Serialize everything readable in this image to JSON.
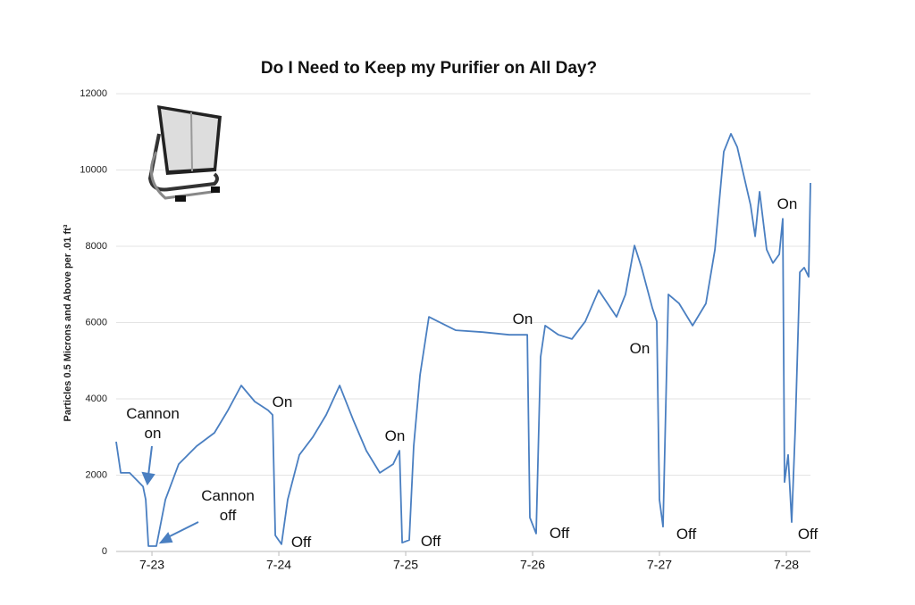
{
  "chart_data": {
    "type": "line",
    "title": "Do I Need to Keep my Purifier on All Day?",
    "y_label": "Particles 0.5 Microns and Above per .01 ft³",
    "x": [
      22.718,
      22.754,
      22.824,
      22.93,
      22.951,
      22.972,
      23.035,
      23.106,
      23.211,
      23.352,
      23.493,
      23.599,
      23.704,
      23.81,
      23.915,
      23.951,
      23.972,
      24.021,
      24.07,
      24.162,
      24.268,
      24.373,
      24.479,
      24.585,
      24.69,
      24.796,
      24.901,
      24.951,
      24.972,
      25.028,
      25.063,
      25.113,
      25.183,
      25.254,
      25.394,
      25.606,
      25.817,
      25.958,
      25.979,
      26.028,
      26.063,
      26.099,
      26.204,
      26.31,
      26.415,
      26.521,
      26.662,
      26.732,
      26.803,
      26.859,
      26.944,
      26.979,
      27.0,
      27.028,
      27.07,
      27.155,
      27.261,
      27.366,
      27.437,
      27.507,
      27.563,
      27.613,
      27.718,
      27.754,
      27.789,
      27.845,
      27.894,
      27.944,
      27.972,
      27.986,
      28.014,
      28.042,
      28.07,
      28.106,
      28.141,
      28.176,
      28.19
    ],
    "series": [
      {
        "color": "#4a7fc1",
        "values": [
          2877,
          2060,
          2060,
          1700,
          1360,
          140,
          140,
          1360,
          2290,
          2760,
          3110,
          3700,
          4350,
          3930,
          3700,
          3580,
          420,
          190,
          1360,
          2530,
          3000,
          3580,
          4350,
          3460,
          2640,
          2060,
          2290,
          2640,
          230,
          300,
          2760,
          4630,
          6150,
          6030,
          5800,
          5750,
          5680,
          5680,
          890,
          470,
          5100,
          5920,
          5680,
          5570,
          6030,
          6850,
          6150,
          6740,
          8020,
          7440,
          6380,
          6030,
          1360,
          650,
          6740,
          6500,
          5920,
          6500,
          7910,
          10480,
          10950,
          10600,
          9080,
          8260,
          9430,
          7910,
          7560,
          7790,
          8720,
          1820,
          2530,
          770,
          3230,
          7320,
          7440,
          7200,
          9660
        ]
      }
    ],
    "xlim": [
      22.718,
      28.19
    ],
    "xticks": [
      {
        "value": 23,
        "label": "7-23"
      },
      {
        "value": 24,
        "label": "7-24"
      },
      {
        "value": 25,
        "label": "7-25"
      },
      {
        "value": 26,
        "label": "7-26"
      },
      {
        "value": 27,
        "label": "7-27"
      },
      {
        "value": 28,
        "label": "7-28"
      }
    ],
    "ylim": [
      0,
      12000
    ],
    "yticks": [
      0,
      2000,
      4000,
      6000,
      8000,
      10000,
      12000
    ],
    "grid": true,
    "annotations": [
      "Cannon on",
      "Cannon off",
      "On",
      "Off",
      "On",
      "Off",
      "On",
      "Off",
      "On",
      "Off",
      "On",
      "Off"
    ]
  }
}
